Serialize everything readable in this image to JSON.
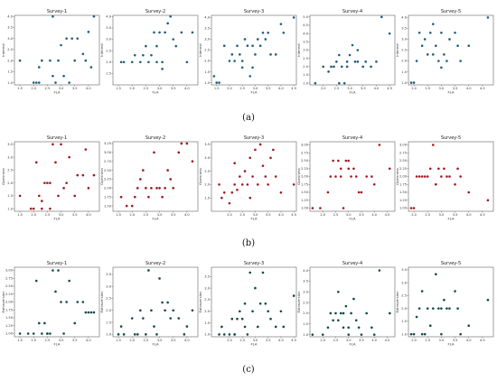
{
  "figure": {
    "captions": [
      "(a)",
      "(b)",
      "(c)"
    ]
  },
  "chart_data": [
    {
      "type": "scatter",
      "title": "Survey-1",
      "xlabel": "FLA",
      "ylabel": "Interest",
      "color": "#1f5f7f",
      "xlim": [
        1.3,
        4.4
      ],
      "ylim": [
        0.9,
        4.05
      ],
      "xticks": [
        "1.5",
        "2.0",
        "2.5",
        "3.0",
        "3.5",
        "4.0"
      ],
      "yticks": [
        "1.0",
        "1.5",
        "2.0",
        "2.5",
        "3.0",
        "3.5",
        "4.0"
      ],
      "x": [
        1.5,
        2.0,
        2.1,
        2.2,
        2.3,
        2.6,
        2.7,
        2.8,
        2.9,
        3.0,
        3.1,
        3.2,
        3.4,
        3.5,
        3.6,
        3.8,
        3.9,
        4.0,
        4.1,
        4.2,
        2.7,
        3.3,
        2.2
      ],
      "y": [
        2.0,
        1.0,
        1.0,
        1.7,
        2.0,
        2.0,
        4.0,
        1.0,
        2.0,
        2.7,
        1.3,
        3.0,
        3.0,
        2.0,
        3.0,
        2.3,
        2.0,
        3.3,
        1.7,
        4.0,
        1.3,
        1.0,
        1.0
      ]
    },
    {
      "type": "scatter",
      "title": "Survey-2",
      "xlabel": "FLA",
      "ylabel": "Interest",
      "color": "#1f5f7f",
      "xlim": [
        1.3,
        4.4
      ],
      "ylim": [
        1.0,
        4.05
      ],
      "xticks": [
        "1.5",
        "2.0",
        "2.5",
        "3.0",
        "3.5",
        "4.0"
      ],
      "yticks": [
        "1.5",
        "2.0",
        "2.5",
        "3.0",
        "3.5",
        "4.0"
      ],
      "x": [
        1.6,
        1.7,
        2.0,
        2.1,
        2.3,
        2.4,
        2.5,
        2.6,
        2.7,
        2.8,
        2.9,
        3.0,
        3.1,
        3.2,
        3.3,
        3.4,
        3.5,
        3.6,
        3.8,
        4.0,
        4.2,
        2.9,
        3.1
      ],
      "y": [
        2.0,
        2.0,
        2.0,
        2.3,
        2.0,
        2.3,
        2.7,
        2.0,
        2.3,
        3.3,
        2.7,
        3.3,
        2.0,
        3.3,
        3.7,
        4.0,
        3.0,
        2.7,
        3.3,
        2.0,
        3.3,
        2.0,
        1.7
      ]
    },
    {
      "type": "scatter",
      "title": "Survey-3",
      "xlabel": "FLA",
      "ylabel": "Interest",
      "color": "#1f5f7f",
      "xlim": [
        1.3,
        4.6
      ],
      "ylim": [
        0.9,
        4.1
      ],
      "xticks": [
        "1.5",
        "2.0",
        "2.5",
        "3.0",
        "3.5",
        "4.0",
        "4.5"
      ],
      "yticks": [
        "1.0",
        "1.5",
        "2.0",
        "2.5",
        "3.0",
        "3.5",
        "4.0"
      ],
      "x": [
        1.4,
        1.5,
        1.6,
        1.8,
        2.0,
        2.1,
        2.2,
        2.3,
        2.4,
        2.5,
        2.6,
        2.7,
        2.8,
        2.9,
        3.0,
        3.1,
        3.2,
        3.3,
        3.4,
        3.5,
        3.6,
        3.8,
        4.0,
        4.1,
        4.5,
        2.5,
        2.9
      ],
      "y": [
        1.3,
        1.0,
        1.0,
        2.7,
        2.0,
        2.3,
        2.0,
        2.7,
        2.3,
        2.0,
        3.0,
        2.7,
        1.3,
        2.7,
        2.3,
        3.0,
        2.7,
        3.3,
        3.0,
        3.3,
        2.3,
        2.3,
        3.7,
        3.3,
        4.0,
        1.7,
        1.7
      ]
    },
    {
      "type": "scatter",
      "title": "Survey-4",
      "xlabel": "FLA",
      "ylabel": "Interest",
      "color": "#1f5f7f",
      "xlim": [
        1.5,
        4.7
      ],
      "ylim": [
        0.9,
        5.1
      ],
      "xticks": [
        "2.0",
        "2.5",
        "3.0",
        "3.5",
        "4.0",
        "4.5"
      ],
      "yticks": [
        "1.0",
        "1.5",
        "2.0",
        "2.5",
        "3.0",
        "3.5",
        "4.0",
        "4.5",
        "5.0"
      ],
      "x": [
        1.7,
        2.0,
        2.2,
        2.3,
        2.4,
        2.5,
        2.6,
        2.7,
        2.8,
        2.9,
        3.0,
        3.1,
        3.2,
        3.3,
        3.5,
        3.6,
        3.8,
        4.0,
        4.2,
        4.5,
        2.6,
        2.9,
        3.3
      ],
      "y": [
        1.0,
        2.0,
        1.7,
        2.0,
        2.0,
        2.3,
        2.7,
        2.0,
        1.0,
        2.3,
        2.7,
        3.3,
        2.3,
        2.3,
        2.0,
        2.3,
        2.0,
        2.3,
        5.0,
        4.0,
        1.0,
        2.0,
        3.0
      ]
    },
    {
      "type": "scatter",
      "title": "Survey-5",
      "xlabel": "FLA",
      "ylabel": "Interest",
      "color": "#1f5f7f",
      "xlim": [
        1.8,
        4.9
      ],
      "ylim": [
        0.9,
        4.1
      ],
      "xticks": [
        "2.0",
        "2.5",
        "3.0",
        "3.5",
        "4.0",
        "4.5"
      ],
      "yticks": [
        "1.0",
        "1.5",
        "2.0",
        "2.5",
        "3.0",
        "3.5",
        "4.0"
      ],
      "x": [
        1.9,
        2.0,
        2.1,
        2.2,
        2.3,
        2.4,
        2.5,
        2.6,
        2.7,
        2.8,
        2.9,
        3.0,
        3.1,
        3.2,
        3.3,
        3.5,
        3.6,
        3.7,
        4.0,
        4.7,
        2.7,
        3.0
      ],
      "y": [
        1.0,
        1.0,
        2.0,
        3.3,
        2.7,
        3.0,
        2.3,
        3.3,
        3.7,
        2.7,
        2.0,
        3.3,
        2.3,
        2.0,
        3.0,
        3.3,
        2.7,
        2.0,
        2.7,
        4.0,
        2.3,
        1.7
      ]
    },
    {
      "type": "scatter",
      "title": "Survey-1",
      "xlabel": "FLA",
      "ylabel": "Openness",
      "color": "#a01820",
      "xlim": [
        1.3,
        4.4
      ],
      "ylim": [
        0.9,
        3.6
      ],
      "xticks": [
        "1.5",
        "2.0",
        "2.5",
        "3.0",
        "3.5",
        "4.0"
      ],
      "yticks": [
        "1.0",
        "1.5",
        "2.0",
        "2.5",
        "3.0",
        "3.5"
      ],
      "x": [
        1.5,
        1.9,
        2.0,
        2.1,
        2.2,
        2.3,
        2.4,
        2.5,
        2.6,
        2.7,
        2.8,
        2.9,
        3.0,
        3.1,
        3.2,
        3.3,
        3.5,
        3.6,
        3.8,
        3.9,
        4.0,
        4.2,
        2.3,
        2.6
      ],
      "y": [
        1.5,
        1.0,
        1.0,
        2.8,
        1.5,
        1.0,
        2.0,
        2.0,
        2.0,
        3.5,
        2.8,
        1.5,
        3.5,
        1.8,
        2.0,
        3.0,
        1.5,
        2.3,
        2.3,
        3.3,
        1.8,
        2.3,
        1.3,
        1.0
      ]
    },
    {
      "type": "scatter",
      "title": "Survey-2",
      "xlabel": "FLA",
      "ylabel": "Openness",
      "color": "#a01820",
      "xlim": [
        1.3,
        4.4
      ],
      "ylim": [
        1.35,
        3.3
      ],
      "xticks": [
        "1.5",
        "2.0",
        "2.5",
        "3.0",
        "3.5",
        "4.0"
      ],
      "yticks": [
        "1.50",
        "1.75",
        "2.00",
        "2.25",
        "2.50",
        "2.75",
        "3.00",
        "3.25"
      ],
      "x": [
        1.6,
        1.8,
        2.0,
        2.1,
        2.2,
        2.3,
        2.4,
        2.5,
        2.6,
        2.7,
        2.8,
        2.9,
        3.0,
        3.1,
        3.2,
        3.3,
        3.4,
        3.5,
        3.7,
        3.8,
        4.0,
        4.2
      ],
      "y": [
        1.75,
        1.5,
        1.5,
        1.75,
        2.0,
        2.25,
        2.5,
        2.0,
        1.75,
        2.0,
        3.0,
        2.0,
        2.0,
        1.75,
        2.0,
        2.5,
        2.25,
        2.0,
        3.0,
        3.25,
        3.25,
        2.75
      ]
    },
    {
      "type": "scatter",
      "title": "Survey-3",
      "xlabel": "FLA",
      "ylabel": "Openness",
      "color": "#a01820",
      "xlim": [
        1.3,
        4.6
      ],
      "ylim": [
        1.0,
        3.6
      ],
      "xticks": [
        "2.0",
        "2.5",
        "3.0",
        "3.5",
        "4.0",
        "4.5"
      ],
      "yticks": [
        "1.5",
        "2.0",
        "2.5",
        "3.0",
        "3.5"
      ],
      "x": [
        1.6,
        1.7,
        1.8,
        2.0,
        2.1,
        2.2,
        2.3,
        2.4,
        2.5,
        2.6,
        2.7,
        2.8,
        2.9,
        3.0,
        3.1,
        3.2,
        3.3,
        3.4,
        3.5,
        3.6,
        3.7,
        3.8,
        4.0,
        4.5,
        2.2,
        2.8
      ],
      "y": [
        2.0,
        1.5,
        1.7,
        1.3,
        1.7,
        2.0,
        1.8,
        2.3,
        2.0,
        2.5,
        2.0,
        3.0,
        2.3,
        3.3,
        2.0,
        3.5,
        2.7,
        2.3,
        2.0,
        3.0,
        3.3,
        2.3,
        1.7,
        2.0,
        2.8,
        1.5
      ]
    },
    {
      "type": "scatter",
      "title": "Survey-4",
      "xlabel": "FLA",
      "ylabel": "Openness",
      "color": "#a01820",
      "xlim": [
        1.5,
        4.8
      ],
      "ylim": [
        0.9,
        3.1
      ],
      "xticks": [
        "2.0",
        "2.5",
        "3.0",
        "3.5",
        "4.0",
        "4.5"
      ],
      "yticks": [
        "1.00",
        "1.25",
        "1.50",
        "1.75",
        "2.00",
        "2.25",
        "2.50",
        "2.75",
        "3.00"
      ],
      "x": [
        1.6,
        1.9,
        2.2,
        2.3,
        2.4,
        2.5,
        2.6,
        2.7,
        2.8,
        2.9,
        3.0,
        3.1,
        3.2,
        3.3,
        3.4,
        3.5,
        3.7,
        3.9,
        4.0,
        4.2,
        4.6,
        2.7,
        3.0
      ],
      "y": [
        1.0,
        1.0,
        1.5,
        2.0,
        2.5,
        2.0,
        2.5,
        2.25,
        1.0,
        2.5,
        2.5,
        2.0,
        2.25,
        2.0,
        1.5,
        1.5,
        2.0,
        2.0,
        1.75,
        3.0,
        2.25,
        2.0,
        2.25
      ]
    },
    {
      "type": "scatter",
      "title": "Survey-5",
      "xlabel": "FLA",
      "ylabel": "Openness",
      "color": "#a01820",
      "xlim": [
        1.8,
        4.9
      ],
      "ylim": [
        0.9,
        3.1
      ],
      "xticks": [
        "2.0",
        "2.5",
        "3.0",
        "3.5",
        "4.0",
        "4.5"
      ],
      "yticks": [
        "1.00",
        "1.25",
        "1.50",
        "1.75",
        "2.00",
        "2.25",
        "2.50",
        "2.75",
        "3.00"
      ],
      "x": [
        1.9,
        2.0,
        2.1,
        2.2,
        2.3,
        2.4,
        2.5,
        2.6,
        2.7,
        2.8,
        2.9,
        3.0,
        3.1,
        3.2,
        3.3,
        3.5,
        3.6,
        3.7,
        4.0,
        4.7,
        2.8
      ],
      "y": [
        1.0,
        1.0,
        2.0,
        2.0,
        2.0,
        2.0,
        2.0,
        2.25,
        3.0,
        1.75,
        2.25,
        2.0,
        2.25,
        2.0,
        2.0,
        1.75,
        2.25,
        2.0,
        1.5,
        1.25,
        1.75
      ]
    },
    {
      "type": "scatter",
      "title": "Survey-1",
      "xlabel": "FLA",
      "ylabel": "Extraversion",
      "color": "#0f4a4a",
      "xlim": [
        1.3,
        4.4
      ],
      "ylim": [
        0.9,
        3.1
      ],
      "xticks": [
        "1.5",
        "2.0",
        "2.5",
        "3.0",
        "3.5",
        "4.0"
      ],
      "yticks": [
        "1.00",
        "1.25",
        "1.50",
        "1.75",
        "2.00",
        "2.25",
        "2.50",
        "2.75",
        "3.00"
      ],
      "x": [
        1.5,
        1.8,
        2.0,
        2.1,
        2.2,
        2.3,
        2.4,
        2.5,
        2.6,
        2.7,
        2.8,
        2.9,
        3.0,
        3.1,
        3.2,
        3.3,
        3.5,
        3.6,
        3.8,
        3.9,
        4.0,
        4.1,
        4.2,
        2.5
      ],
      "y": [
        1.0,
        1.0,
        1.0,
        2.67,
        1.33,
        1.0,
        1.33,
        1.0,
        1.0,
        3.0,
        2.33,
        3.0,
        2.0,
        1.0,
        2.0,
        2.67,
        1.33,
        2.0,
        2.0,
        1.67,
        1.67,
        1.67,
        1.67,
        1.0
      ]
    },
    {
      "type": "scatter",
      "title": "Survey-2",
      "xlabel": "FLA",
      "ylabel": "Extraversion",
      "color": "#0f4a4a",
      "xlim": [
        1.3,
        4.4
      ],
      "ylim": [
        0.9,
        3.8
      ],
      "xticks": [
        "1.5",
        "2.0",
        "2.5",
        "3.0",
        "3.5",
        "4.0"
      ],
      "yticks": [
        "1.0",
        "1.5",
        "2.0",
        "2.5",
        "3.0",
        "3.5"
      ],
      "x": [
        1.5,
        1.6,
        1.7,
        2.0,
        2.1,
        2.3,
        2.4,
        2.5,
        2.6,
        2.7,
        2.8,
        2.9,
        3.0,
        3.1,
        3.2,
        3.3,
        3.4,
        3.5,
        3.7,
        3.9,
        4.0,
        4.2,
        2.2
      ],
      "y": [
        1.0,
        1.33,
        1.0,
        1.67,
        1.0,
        2.0,
        1.67,
        1.0,
        3.67,
        2.0,
        1.33,
        1.0,
        3.33,
        2.33,
        2.0,
        2.33,
        1.67,
        2.0,
        1.67,
        1.0,
        1.33,
        2.0,
        1.0
      ]
    },
    {
      "type": "scatter",
      "title": "Survey-3",
      "xlabel": "FLA",
      "ylabel": "Extraversion",
      "color": "#0f4a4a",
      "xlim": [
        1.3,
        4.6
      ],
      "ylim": [
        0.9,
        3.9
      ],
      "xticks": [
        "2.0",
        "2.5",
        "3.0",
        "3.5",
        "4.0",
        "4.5"
      ],
      "yticks": [
        "1.0",
        "1.5",
        "2.0",
        "2.5",
        "3.0",
        "3.5"
      ],
      "x": [
        1.6,
        1.7,
        1.8,
        2.0,
        2.1,
        2.2,
        2.3,
        2.4,
        2.5,
        2.6,
        2.7,
        2.8,
        2.9,
        3.0,
        3.1,
        3.2,
        3.3,
        3.4,
        3.5,
        3.6,
        3.8,
        4.0,
        4.1,
        4.5,
        2.2,
        2.6
      ],
      "y": [
        1.0,
        1.33,
        1.0,
        1.0,
        1.67,
        1.0,
        1.67,
        2.0,
        1.67,
        2.33,
        1.0,
        3.67,
        2.0,
        3.0,
        1.33,
        2.33,
        3.67,
        2.33,
        2.0,
        1.67,
        1.33,
        2.0,
        1.33,
        2.67,
        1.0,
        1.33
      ]
    },
    {
      "type": "scatter",
      "title": "Survey-4",
      "xlabel": "FLA",
      "ylabel": "Extraversion",
      "color": "#0f4a4a",
      "xlim": [
        1.5,
        4.8
      ],
      "ylim": [
        0.9,
        4.15
      ],
      "xticks": [
        "2.0",
        "2.5",
        "3.0",
        "3.5",
        "4.0",
        "4.5"
      ],
      "yticks": [
        "1.0",
        "1.5",
        "2.0",
        "2.5",
        "3.0",
        "3.5",
        "4.0"
      ],
      "x": [
        1.6,
        2.0,
        2.2,
        2.3,
        2.4,
        2.5,
        2.6,
        2.7,
        2.8,
        2.9,
        3.0,
        3.1,
        3.2,
        3.3,
        3.4,
        3.5,
        3.7,
        3.9,
        4.0,
        4.2,
        4.6,
        2.6,
        2.8,
        3.0
      ],
      "y": [
        1.0,
        1.0,
        1.33,
        2.0,
        1.67,
        2.0,
        3.0,
        2.0,
        1.33,
        2.33,
        1.0,
        2.0,
        2.67,
        1.67,
        1.33,
        1.0,
        2.0,
        1.33,
        1.0,
        4.0,
        2.0,
        1.67,
        2.0,
        1.33
      ]
    },
    {
      "type": "scatter",
      "title": "Survey-5",
      "xlabel": "FLA",
      "ylabel": "Extraversion",
      "color": "#0f4a4a",
      "xlim": [
        1.8,
        4.9
      ],
      "ylim": [
        0.9,
        3.6
      ],
      "xticks": [
        "2.0",
        "2.5",
        "3.0",
        "3.5",
        "4.0",
        "4.5"
      ],
      "yticks": [
        "1.0",
        "1.5",
        "2.0",
        "2.5",
        "3.0",
        "3.5"
      ],
      "x": [
        1.9,
        2.0,
        2.1,
        2.2,
        2.3,
        2.4,
        2.5,
        2.6,
        2.7,
        2.8,
        2.9,
        3.0,
        3.1,
        3.2,
        3.3,
        3.5,
        3.6,
        3.7,
        4.0,
        4.7,
        2.3,
        3.0
      ],
      "y": [
        1.0,
        1.0,
        1.67,
        2.0,
        2.67,
        1.0,
        2.0,
        1.33,
        2.0,
        3.33,
        2.0,
        2.0,
        2.33,
        2.0,
        2.0,
        2.67,
        2.0,
        1.0,
        1.33,
        2.33,
        1.0,
        1.0
      ]
    }
  ]
}
